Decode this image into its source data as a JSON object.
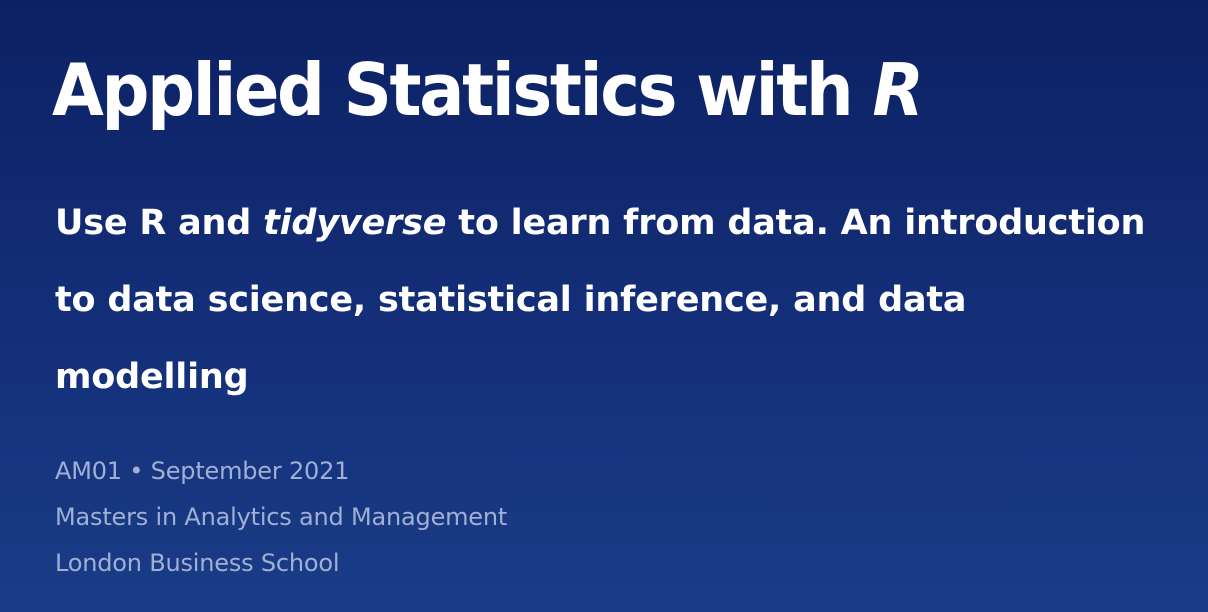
{
  "title": {
    "main": "Applied Statistics with",
    "r": "R"
  },
  "subtitle": {
    "part1": "Use R and",
    "tidyverse": "tidyverse",
    "part2": "to learn from data. An introduction to data science, statistical inference, and data modelling"
  },
  "meta": {
    "course_line": "AM01 • September 2021",
    "program": "Masters in Analytics and Management",
    "school": "London Business School"
  },
  "colors": {
    "background_top": "#0c2163",
    "background_bottom": "#1a3c86",
    "text_primary": "#ffffff",
    "text_meta": "#9fb0d4"
  }
}
